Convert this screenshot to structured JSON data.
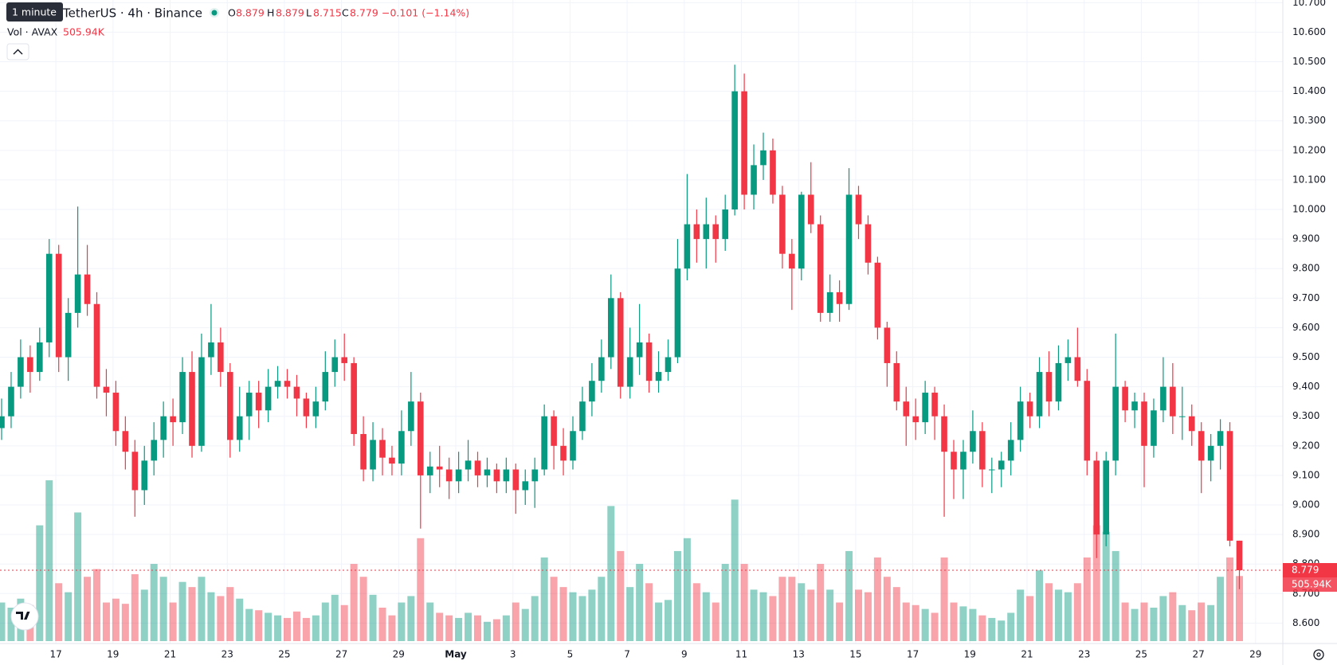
{
  "chart_data": {
    "type": "candlestick",
    "tooltip": "1 minute",
    "symbol": "TetherUS · 4h · Binance",
    "open_label": "O",
    "high_label": "H",
    "low_label": "L",
    "close_label": "C",
    "change_label": "−0.101 (−1.14%)",
    "volume_title": "Vol · AVAX",
    "last_volume_label": "505.94K",
    "up_color": "#089981",
    "down_color": "#f23645",
    "grid": true,
    "ylim": [
      8.531,
      10.709
    ],
    "volume_lim": [
      0,
      2600000
    ],
    "yticks": [
      {
        "value": 8.6,
        "label": "8.600"
      },
      {
        "value": 8.7,
        "label": "8.700"
      },
      {
        "value": 8.8,
        "label": "8.800"
      },
      {
        "value": 8.9,
        "label": "8.900"
      },
      {
        "value": 9.0,
        "label": "9.000"
      },
      {
        "value": 9.1,
        "label": "9.100"
      },
      {
        "value": 9.2,
        "label": "9.200"
      },
      {
        "value": 9.3,
        "label": "9.300"
      },
      {
        "value": 9.4,
        "label": "9.400"
      },
      {
        "value": 9.5,
        "label": "9.500"
      },
      {
        "value": 9.6,
        "label": "9.600"
      },
      {
        "value": 9.7,
        "label": "9.700"
      },
      {
        "value": 9.8,
        "label": "9.800"
      },
      {
        "value": 9.9,
        "label": "9.900"
      },
      {
        "value": 10.0,
        "label": "10.000"
      },
      {
        "value": 10.1,
        "label": "10.100"
      },
      {
        "value": 10.2,
        "label": "10.200"
      },
      {
        "value": 10.3,
        "label": "10.300"
      },
      {
        "value": 10.4,
        "label": "10.400"
      },
      {
        "value": 10.5,
        "label": "10.500"
      },
      {
        "value": 10.6,
        "label": "10.600"
      },
      {
        "value": 10.7,
        "label": "10.700"
      }
    ],
    "xticks": [
      {
        "value": 5.7,
        "label": "17"
      },
      {
        "value": 11.7,
        "label": "19"
      },
      {
        "value": 17.7,
        "label": "21"
      },
      {
        "value": 23.7,
        "label": "23"
      },
      {
        "value": 29.7,
        "label": "25"
      },
      {
        "value": 35.7,
        "label": "27"
      },
      {
        "value": 41.7,
        "label": "29"
      },
      {
        "value": 47.7,
        "label": "May"
      },
      {
        "value": 53.7,
        "label": "3"
      },
      {
        "value": 59.7,
        "label": "5"
      },
      {
        "value": 65.7,
        "label": "7"
      },
      {
        "value": 71.7,
        "label": "9"
      },
      {
        "value": 77.7,
        "label": "11"
      },
      {
        "value": 83.7,
        "label": "13"
      },
      {
        "value": 89.7,
        "label": "15"
      },
      {
        "value": 95.7,
        "label": "17"
      },
      {
        "value": 101.7,
        "label": "19"
      },
      {
        "value": 107.7,
        "label": "21"
      },
      {
        "value": 113.7,
        "label": "23"
      },
      {
        "value": 119.7,
        "label": "25"
      },
      {
        "value": 125.7,
        "label": "27"
      },
      {
        "value": 131.7,
        "label": "29"
      }
    ],
    "ohlcv": [
      [
        9.26,
        9.36,
        9.22,
        9.3,
        300000
      ],
      [
        9.3,
        9.45,
        9.26,
        9.4,
        260000
      ],
      [
        9.4,
        9.56,
        9.36,
        9.5,
        330000
      ],
      [
        9.5,
        9.54,
        9.38,
        9.45,
        280000
      ],
      [
        9.45,
        9.6,
        9.42,
        9.55,
        900000
      ],
      [
        9.55,
        9.9,
        9.5,
        9.85,
        1250000
      ],
      [
        9.85,
        9.88,
        9.45,
        9.5,
        450000
      ],
      [
        9.5,
        9.7,
        9.42,
        9.65,
        380000
      ],
      [
        9.65,
        10.01,
        9.6,
        9.78,
        1000000
      ],
      [
        9.78,
        9.88,
        9.64,
        9.68,
        500000
      ],
      [
        9.68,
        9.72,
        9.36,
        9.4,
        560000
      ],
      [
        9.4,
        9.46,
        9.3,
        9.38,
        300000
      ],
      [
        9.38,
        9.42,
        9.2,
        9.25,
        330000
      ],
      [
        9.25,
        9.3,
        9.12,
        9.18,
        290000
      ],
      [
        9.18,
        9.22,
        8.96,
        9.05,
        520000
      ],
      [
        9.05,
        9.2,
        9.0,
        9.15,
        400000
      ],
      [
        9.15,
        9.28,
        9.1,
        9.22,
        600000
      ],
      [
        9.22,
        9.35,
        9.16,
        9.3,
        500000
      ],
      [
        9.3,
        9.36,
        9.2,
        9.28,
        300000
      ],
      [
        9.28,
        9.5,
        9.24,
        9.45,
        460000
      ],
      [
        9.45,
        9.52,
        9.16,
        9.2,
        420000
      ],
      [
        9.2,
        9.58,
        9.18,
        9.5,
        500000
      ],
      [
        9.5,
        9.68,
        9.44,
        9.55,
        380000
      ],
      [
        9.55,
        9.6,
        9.4,
        9.45,
        350000
      ],
      [
        9.45,
        9.48,
        9.16,
        9.22,
        420000
      ],
      [
        9.22,
        9.4,
        9.18,
        9.3,
        330000
      ],
      [
        9.3,
        9.42,
        9.22,
        9.38,
        250000
      ],
      [
        9.38,
        9.42,
        9.26,
        9.32,
        240000
      ],
      [
        9.32,
        9.46,
        9.28,
        9.4,
        220000
      ],
      [
        9.4,
        9.47,
        9.36,
        9.42,
        200000
      ],
      [
        9.42,
        9.46,
        9.36,
        9.4,
        180000
      ],
      [
        9.4,
        9.44,
        9.3,
        9.36,
        230000
      ],
      [
        9.36,
        9.38,
        9.26,
        9.3,
        180000
      ],
      [
        9.3,
        9.4,
        9.26,
        9.35,
        200000
      ],
      [
        9.35,
        9.52,
        9.32,
        9.45,
        300000
      ],
      [
        9.45,
        9.56,
        9.4,
        9.5,
        360000
      ],
      [
        9.5,
        9.58,
        9.42,
        9.48,
        280000
      ],
      [
        9.48,
        9.5,
        9.2,
        9.24,
        600000
      ],
      [
        9.24,
        9.3,
        9.08,
        9.12,
        500000
      ],
      [
        9.12,
        9.28,
        9.08,
        9.22,
        360000
      ],
      [
        9.22,
        9.26,
        9.1,
        9.16,
        260000
      ],
      [
        9.16,
        9.2,
        9.1,
        9.14,
        200000
      ],
      [
        9.14,
        9.32,
        9.1,
        9.25,
        300000
      ],
      [
        9.25,
        9.45,
        9.2,
        9.35,
        350000
      ],
      [
        9.35,
        9.38,
        8.92,
        9.1,
        800000
      ],
      [
        9.1,
        9.18,
        9.04,
        9.13,
        300000
      ],
      [
        9.13,
        9.2,
        9.06,
        9.12,
        220000
      ],
      [
        9.12,
        9.16,
        9.02,
        9.08,
        200000
      ],
      [
        9.08,
        9.18,
        9.04,
        9.12,
        180000
      ],
      [
        9.12,
        9.22,
        9.08,
        9.15,
        220000
      ],
      [
        9.15,
        9.18,
        9.06,
        9.1,
        200000
      ],
      [
        9.1,
        9.16,
        9.06,
        9.12,
        150000
      ],
      [
        9.12,
        9.14,
        9.04,
        9.08,
        170000
      ],
      [
        9.08,
        9.16,
        9.04,
        9.12,
        200000
      ],
      [
        9.12,
        9.14,
        8.97,
        9.05,
        300000
      ],
      [
        9.05,
        9.12,
        9.0,
        9.08,
        250000
      ],
      [
        9.08,
        9.16,
        8.99,
        9.12,
        350000
      ],
      [
        9.12,
        9.34,
        9.1,
        9.3,
        650000
      ],
      [
        9.3,
        9.32,
        9.12,
        9.2,
        500000
      ],
      [
        9.2,
        9.26,
        9.1,
        9.15,
        420000
      ],
      [
        9.15,
        9.3,
        9.12,
        9.25,
        380000
      ],
      [
        9.25,
        9.4,
        9.22,
        9.35,
        350000
      ],
      [
        9.35,
        9.48,
        9.3,
        9.42,
        400000
      ],
      [
        9.42,
        9.56,
        9.38,
        9.5,
        500000
      ],
      [
        9.5,
        9.78,
        9.46,
        9.7,
        1050000
      ],
      [
        9.7,
        9.72,
        9.36,
        9.4,
        700000
      ],
      [
        9.4,
        9.6,
        9.36,
        9.5,
        420000
      ],
      [
        9.5,
        9.68,
        9.44,
        9.55,
        600000
      ],
      [
        9.55,
        9.58,
        9.38,
        9.42,
        450000
      ],
      [
        9.42,
        9.52,
        9.38,
        9.45,
        300000
      ],
      [
        9.45,
        9.56,
        9.42,
        9.5,
        320000
      ],
      [
        9.5,
        9.9,
        9.48,
        9.8,
        700000
      ],
      [
        9.8,
        10.12,
        9.76,
        9.95,
        800000
      ],
      [
        9.95,
        10.0,
        9.82,
        9.9,
        450000
      ],
      [
        9.9,
        10.04,
        9.8,
        9.95,
        380000
      ],
      [
        9.95,
        9.98,
        9.82,
        9.9,
        300000
      ],
      [
        9.9,
        10.05,
        9.86,
        10.0,
        600000
      ],
      [
        10.0,
        10.49,
        9.98,
        10.4,
        1100000
      ],
      [
        10.4,
        10.46,
        10.0,
        10.05,
        600000
      ],
      [
        10.05,
        10.22,
        10.0,
        10.15,
        400000
      ],
      [
        10.15,
        10.26,
        10.1,
        10.2,
        380000
      ],
      [
        10.2,
        10.24,
        10.02,
        10.05,
        350000
      ],
      [
        10.05,
        10.08,
        9.8,
        9.85,
        500000
      ],
      [
        9.85,
        9.9,
        9.66,
        9.8,
        500000
      ],
      [
        9.8,
        10.06,
        9.76,
        10.05,
        450000
      ],
      [
        10.05,
        10.16,
        9.92,
        9.95,
        400000
      ],
      [
        9.95,
        9.98,
        9.62,
        9.65,
        600000
      ],
      [
        9.65,
        9.78,
        9.62,
        9.72,
        400000
      ],
      [
        9.72,
        9.76,
        9.62,
        9.68,
        300000
      ],
      [
        9.68,
        10.14,
        9.66,
        10.05,
        700000
      ],
      [
        10.05,
        10.08,
        9.9,
        9.95,
        400000
      ],
      [
        9.95,
        9.98,
        9.78,
        9.82,
        380000
      ],
      [
        9.82,
        9.84,
        9.56,
        9.6,
        650000
      ],
      [
        9.6,
        9.62,
        9.4,
        9.48,
        500000
      ],
      [
        9.48,
        9.52,
        9.32,
        9.35,
        420000
      ],
      [
        9.35,
        9.4,
        9.2,
        9.3,
        300000
      ],
      [
        9.3,
        9.36,
        9.22,
        9.28,
        280000
      ],
      [
        9.28,
        9.42,
        9.24,
        9.38,
        250000
      ],
      [
        9.38,
        9.4,
        9.22,
        9.3,
        220000
      ],
      [
        9.3,
        9.34,
        8.96,
        9.18,
        650000
      ],
      [
        9.18,
        9.22,
        9.02,
        9.12,
        300000
      ],
      [
        9.12,
        9.22,
        9.02,
        9.18,
        270000
      ],
      [
        9.18,
        9.32,
        9.14,
        9.25,
        250000
      ],
      [
        9.25,
        9.28,
        9.06,
        9.12,
        200000
      ],
      [
        9.12,
        9.16,
        9.04,
        9.12,
        180000
      ],
      [
        9.12,
        9.18,
        9.06,
        9.15,
        160000
      ],
      [
        9.15,
        9.28,
        9.1,
        9.22,
        220000
      ],
      [
        9.22,
        9.4,
        9.18,
        9.35,
        400000
      ],
      [
        9.35,
        9.38,
        9.26,
        9.3,
        350000
      ],
      [
        9.3,
        9.5,
        9.26,
        9.45,
        550000
      ],
      [
        9.45,
        9.52,
        9.3,
        9.35,
        450000
      ],
      [
        9.35,
        9.54,
        9.32,
        9.48,
        400000
      ],
      [
        9.48,
        9.56,
        9.42,
        9.5,
        380000
      ],
      [
        9.5,
        9.6,
        9.4,
        9.42,
        450000
      ],
      [
        9.42,
        9.46,
        9.1,
        9.15,
        650000
      ],
      [
        9.15,
        9.18,
        8.82,
        8.9,
        900000
      ],
      [
        8.9,
        9.18,
        8.86,
        9.15,
        850000
      ],
      [
        9.15,
        9.58,
        9.1,
        9.4,
        700000
      ],
      [
        9.4,
        9.42,
        9.28,
        9.32,
        300000
      ],
      [
        9.32,
        9.38,
        9.26,
        9.35,
        250000
      ],
      [
        9.35,
        9.38,
        9.06,
        9.2,
        300000
      ],
      [
        9.2,
        9.36,
        9.16,
        9.32,
        260000
      ],
      [
        9.32,
        9.5,
        9.28,
        9.4,
        350000
      ],
      [
        9.4,
        9.48,
        9.24,
        9.3,
        380000
      ],
      [
        9.3,
        9.4,
        9.22,
        9.3,
        280000
      ],
      [
        9.3,
        9.34,
        9.2,
        9.25,
        240000
      ],
      [
        9.25,
        9.28,
        9.04,
        9.15,
        300000
      ],
      [
        9.15,
        9.24,
        9.08,
        9.2,
        280000
      ],
      [
        9.2,
        9.29,
        9.12,
        9.25,
        500000
      ],
      [
        9.25,
        9.28,
        8.86,
        8.879,
        650000
      ],
      [
        8.879,
        8.879,
        8.715,
        8.779,
        505940
      ]
    ]
  }
}
